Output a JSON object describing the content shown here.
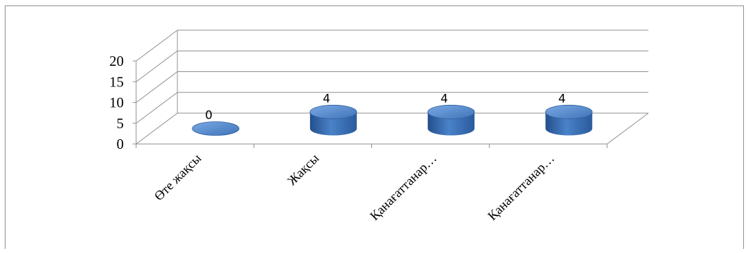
{
  "chart_data": {
    "type": "bar",
    "style": "3d-cylinder",
    "categories": [
      "Өте жақсы",
      "Жақсы",
      "Қанағаттанар…",
      "Қанағаттанар…"
    ],
    "values": [
      0,
      4,
      4,
      4
    ],
    "data_labels": [
      "0",
      "4",
      "4",
      "4"
    ],
    "ylim": [
      0,
      20
    ],
    "yticks": [
      "0",
      "5",
      "10",
      "15",
      "20"
    ],
    "grid": true,
    "colors": {
      "bar": "#3f73b8",
      "bar_light": "#6f9fdc",
      "bar_dark": "#244f8c",
      "grid": "#8c8c8c"
    }
  }
}
